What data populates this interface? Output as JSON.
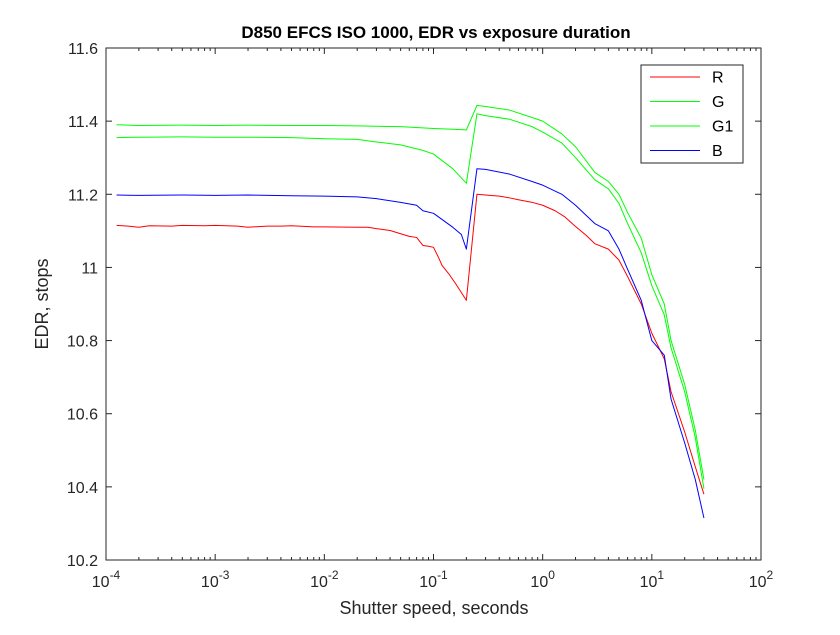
{
  "chart_data": {
    "type": "line",
    "title": "D850 EFCS ISO 1000, EDR vs exposure duration",
    "xlabel": "Shutter speed, seconds",
    "ylabel": "EDR, stops",
    "xscale": "log",
    "xlim": [
      0.0001,
      100
    ],
    "ylim": [
      10.2,
      11.6
    ],
    "x_ticks": [
      {
        "value": 0.0001,
        "base": "10",
        "exp": "-4"
      },
      {
        "value": 0.001,
        "base": "10",
        "exp": "-3"
      },
      {
        "value": 0.01,
        "base": "10",
        "exp": "-2"
      },
      {
        "value": 0.1,
        "base": "10",
        "exp": "-1"
      },
      {
        "value": 1,
        "base": "10",
        "exp": "0"
      },
      {
        "value": 10,
        "base": "10",
        "exp": "1"
      },
      {
        "value": 100,
        "base": "10",
        "exp": "2"
      }
    ],
    "y_ticks": [
      {
        "value": 10.2,
        "label": "10.2"
      },
      {
        "value": 10.4,
        "label": "10.4"
      },
      {
        "value": 10.6,
        "label": "10.6"
      },
      {
        "value": 10.8,
        "label": "10.8"
      },
      {
        "value": 11.0,
        "label": "11"
      },
      {
        "value": 11.2,
        "label": "11.2"
      },
      {
        "value": 11.4,
        "label": "11.4"
      },
      {
        "value": 11.6,
        "label": "11.6"
      }
    ],
    "grid": false,
    "legend_position": "top-right",
    "series": [
      {
        "name": "R",
        "color": "#ff0000",
        "points": [
          [
            0.000125,
            11.115
          ],
          [
            0.00016,
            11.113
          ],
          [
            0.0002,
            11.11
          ],
          [
            0.00025,
            11.114
          ],
          [
            0.0004,
            11.113
          ],
          [
            0.0005,
            11.115
          ],
          [
            0.0008,
            11.114
          ],
          [
            0.001,
            11.115
          ],
          [
            0.0016,
            11.113
          ],
          [
            0.002,
            11.11
          ],
          [
            0.003,
            11.113
          ],
          [
            0.004,
            11.113
          ],
          [
            0.005,
            11.114
          ],
          [
            0.008,
            11.111
          ],
          [
            0.01,
            11.111
          ],
          [
            0.02,
            11.11
          ],
          [
            0.025,
            11.11
          ],
          [
            0.03,
            11.106
          ],
          [
            0.04,
            11.101
          ],
          [
            0.05,
            11.092
          ],
          [
            0.06,
            11.085
          ],
          [
            0.07,
            11.082
          ],
          [
            0.08,
            11.06
          ],
          [
            0.09,
            11.058
          ],
          [
            0.1,
            11.055
          ],
          [
            0.11,
            11.03
          ],
          [
            0.12,
            11.005
          ],
          [
            0.14,
            10.98
          ],
          [
            0.16,
            10.955
          ],
          [
            0.2,
            10.91
          ],
          [
            0.25,
            11.2
          ],
          [
            0.3,
            11.198
          ],
          [
            0.4,
            11.195
          ],
          [
            0.5,
            11.19
          ],
          [
            0.6,
            11.185
          ],
          [
            0.8,
            11.178
          ],
          [
            1,
            11.17
          ],
          [
            1.3,
            11.155
          ],
          [
            1.6,
            11.138
          ],
          [
            2,
            11.112
          ],
          [
            2.5,
            11.088
          ],
          [
            3,
            11.065
          ],
          [
            4,
            11.05
          ],
          [
            5,
            11.02
          ],
          [
            6,
            10.975
          ],
          [
            8,
            10.9
          ],
          [
            10,
            10.82
          ],
          [
            13,
            10.75
          ],
          [
            15,
            10.66
          ],
          [
            20,
            10.55
          ],
          [
            25,
            10.455
          ],
          [
            30,
            10.38
          ]
        ]
      },
      {
        "name": "G",
        "color": "#00ff00",
        "points": [
          [
            0.000125,
            11.39
          ],
          [
            0.0002,
            11.388
          ],
          [
            0.0005,
            11.389
          ],
          [
            0.001,
            11.388
          ],
          [
            0.002,
            11.389
          ],
          [
            0.005,
            11.388
          ],
          [
            0.01,
            11.388
          ],
          [
            0.02,
            11.387
          ],
          [
            0.03,
            11.386
          ],
          [
            0.05,
            11.385
          ],
          [
            0.1,
            11.38
          ],
          [
            0.15,
            11.378
          ],
          [
            0.2,
            11.376
          ],
          [
            0.25,
            11.443
          ],
          [
            0.3,
            11.44
          ],
          [
            0.5,
            11.43
          ],
          [
            0.8,
            11.41
          ],
          [
            1,
            11.4
          ],
          [
            1.5,
            11.365
          ],
          [
            2,
            11.33
          ],
          [
            3,
            11.26
          ],
          [
            4,
            11.235
          ],
          [
            5,
            11.2
          ],
          [
            6,
            11.15
          ],
          [
            8,
            11.08
          ],
          [
            10,
            10.98
          ],
          [
            13,
            10.9
          ],
          [
            15,
            10.8
          ],
          [
            20,
            10.68
          ],
          [
            25,
            10.555
          ],
          [
            30,
            10.42
          ]
        ]
      },
      {
        "name": "G1",
        "color": "#00ff00",
        "points": [
          [
            0.000125,
            11.355
          ],
          [
            0.0002,
            11.356
          ],
          [
            0.0005,
            11.357
          ],
          [
            0.001,
            11.356
          ],
          [
            0.002,
            11.356
          ],
          [
            0.005,
            11.355
          ],
          [
            0.01,
            11.352
          ],
          [
            0.02,
            11.35
          ],
          [
            0.03,
            11.343
          ],
          [
            0.05,
            11.335
          ],
          [
            0.08,
            11.32
          ],
          [
            0.1,
            11.31
          ],
          [
            0.15,
            11.27
          ],
          [
            0.2,
            11.23
          ],
          [
            0.25,
            11.42
          ],
          [
            0.3,
            11.415
          ],
          [
            0.5,
            11.405
          ],
          [
            0.8,
            11.385
          ],
          [
            1,
            11.37
          ],
          [
            1.5,
            11.34
          ],
          [
            2,
            11.3
          ],
          [
            3,
            11.24
          ],
          [
            4,
            11.215
          ],
          [
            5,
            11.175
          ],
          [
            6,
            11.12
          ],
          [
            8,
            11.04
          ],
          [
            10,
            10.95
          ],
          [
            13,
            10.87
          ],
          [
            15,
            10.78
          ],
          [
            20,
            10.66
          ],
          [
            25,
            10.535
          ],
          [
            30,
            10.395
          ]
        ]
      },
      {
        "name": "B",
        "color": "#0000ff",
        "points": [
          [
            0.000125,
            11.198
          ],
          [
            0.0002,
            11.197
          ],
          [
            0.0005,
            11.198
          ],
          [
            0.001,
            11.197
          ],
          [
            0.002,
            11.198
          ],
          [
            0.005,
            11.196
          ],
          [
            0.01,
            11.195
          ],
          [
            0.02,
            11.193
          ],
          [
            0.03,
            11.188
          ],
          [
            0.05,
            11.178
          ],
          [
            0.07,
            11.17
          ],
          [
            0.08,
            11.155
          ],
          [
            0.1,
            11.148
          ],
          [
            0.15,
            11.11
          ],
          [
            0.18,
            11.09
          ],
          [
            0.2,
            11.05
          ],
          [
            0.25,
            11.27
          ],
          [
            0.3,
            11.268
          ],
          [
            0.5,
            11.255
          ],
          [
            0.8,
            11.235
          ],
          [
            1,
            11.225
          ],
          [
            1.5,
            11.2
          ],
          [
            2,
            11.17
          ],
          [
            3,
            11.12
          ],
          [
            4,
            11.1
          ],
          [
            5,
            11.05
          ],
          [
            6,
            10.995
          ],
          [
            8,
            10.91
          ],
          [
            10,
            10.8
          ],
          [
            13,
            10.76
          ],
          [
            15,
            10.64
          ],
          [
            20,
            10.52
          ],
          [
            25,
            10.42
          ],
          [
            30,
            10.315
          ]
        ]
      }
    ]
  }
}
